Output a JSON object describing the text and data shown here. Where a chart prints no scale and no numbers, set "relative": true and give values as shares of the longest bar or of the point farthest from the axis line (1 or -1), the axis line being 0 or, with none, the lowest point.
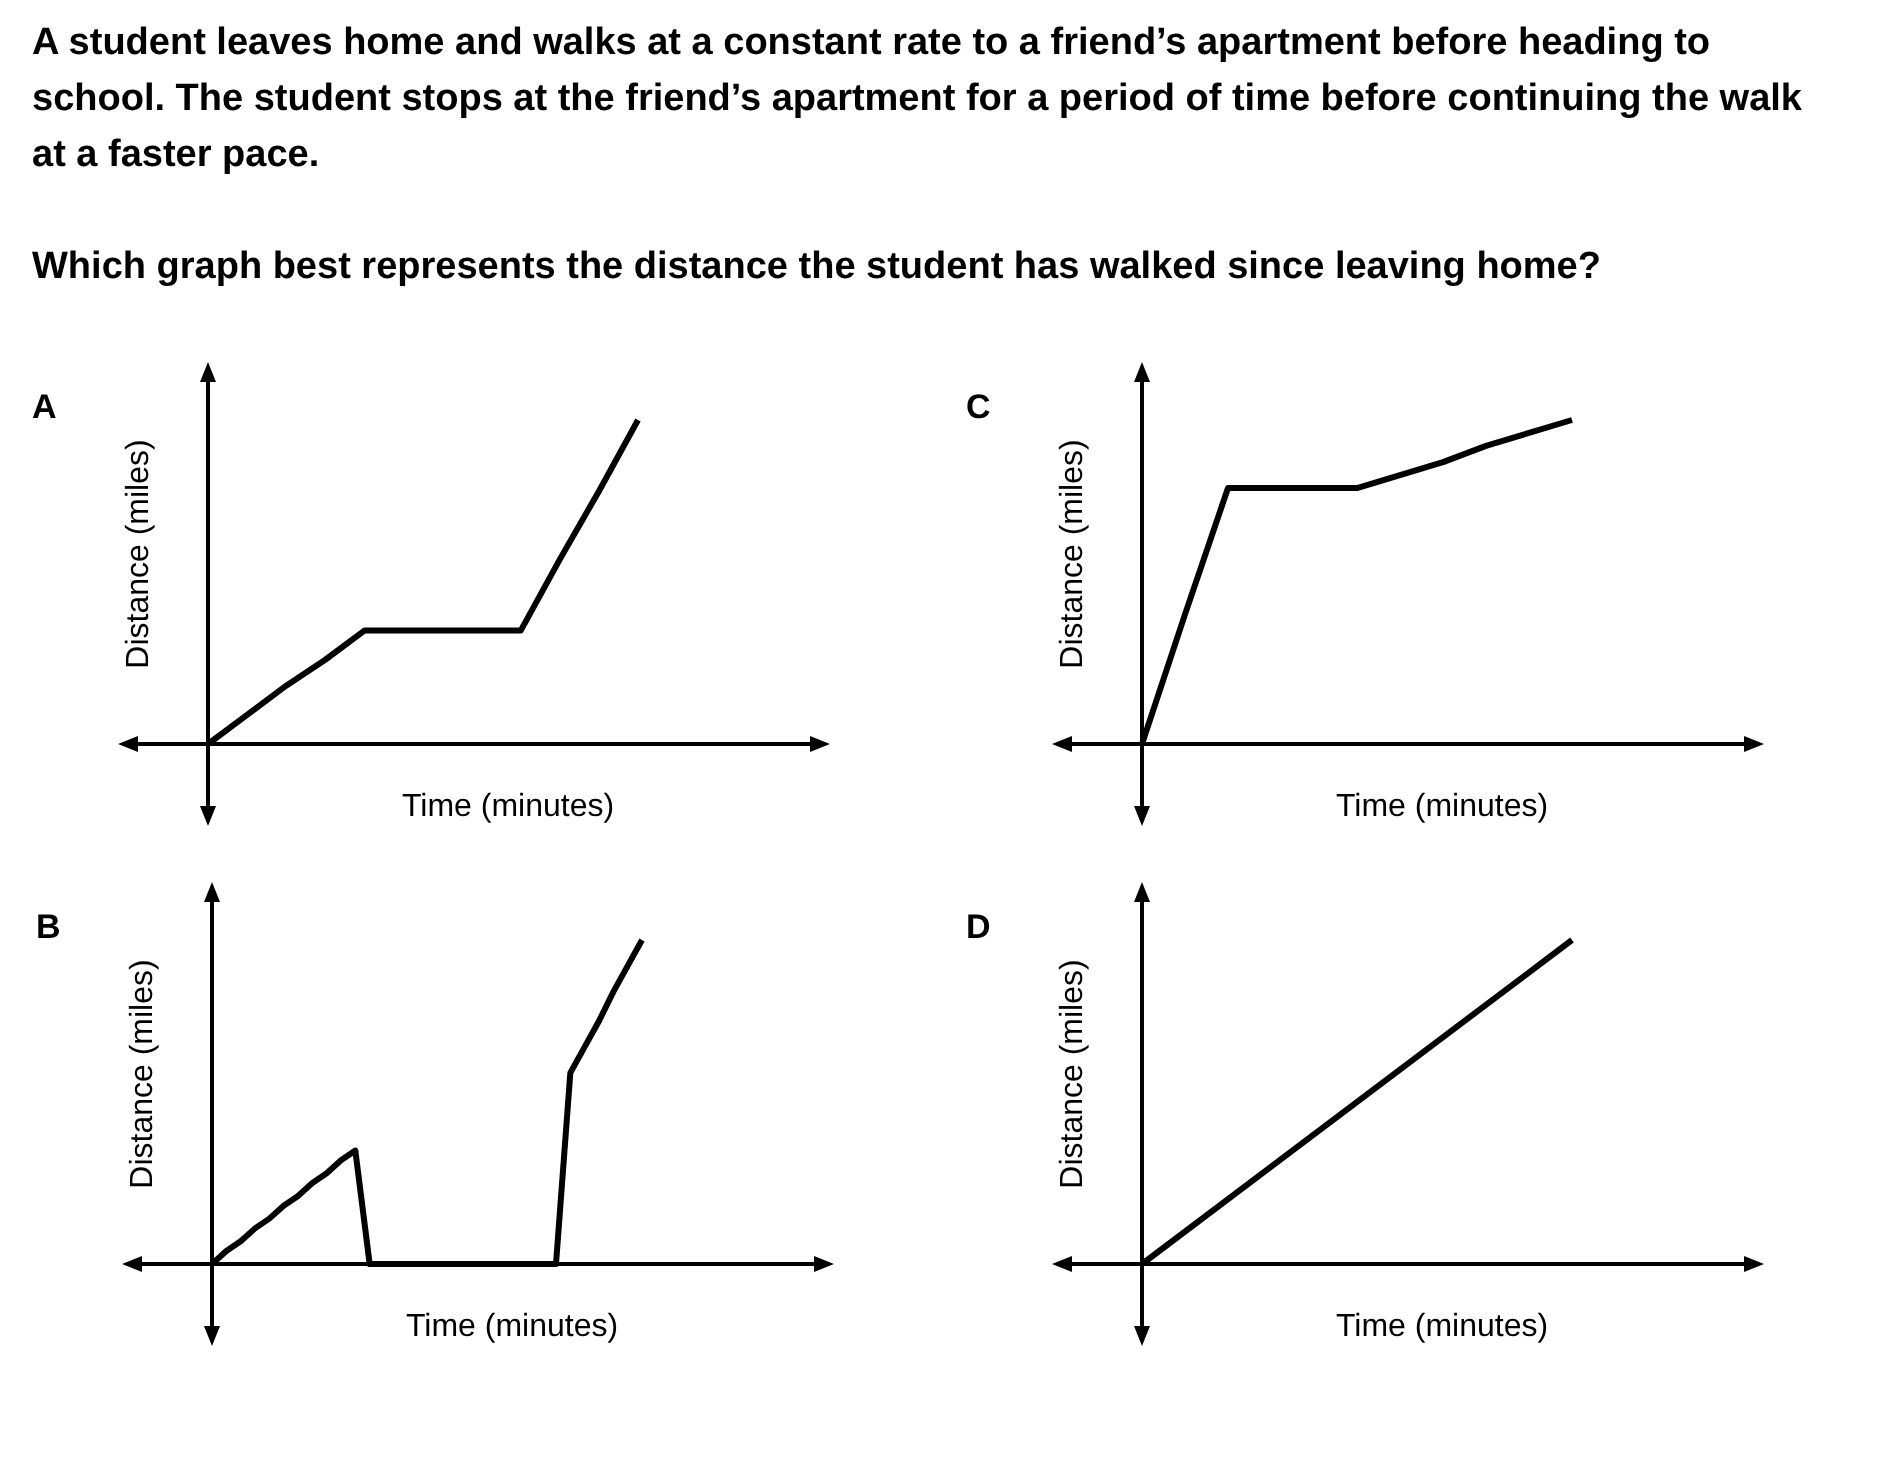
{
  "chart_data": [
    {
      "type": "line",
      "title": "A",
      "xlabel": "Time (minutes)",
      "ylabel": "Distance (miles)",
      "relative": true,
      "annotations": [
        "A student leaves home and walks at a constant rate to a friend’s apartment before heading to school. The student stops at the friend’s apartment for a period of time before continuing the walk at a faster pace.",
        "Which graph best represents the distance the student has walked since leaving home?"
      ],
      "categories": [
        null,
        null,
        null,
        null,
        null,
        null,
        null,
        null,
        null,
        null,
        null,
        null
      ],
      "series": [
        {
          "color": "#000000",
          "values": [
            0,
            0.09,
            0.18,
            0.26,
            0.35,
            0.35,
            0.35,
            0.35,
            0.35,
            0.57,
            0.78,
            1
          ]
        }
      ]
    },
    {
      "type": "line",
      "title": "B",
      "xlabel": "Time (minutes)",
      "ylabel": "Distance (miles)",
      "relative": true,
      "categories": [
        null,
        null,
        null,
        null,
        null,
        null,
        null,
        null,
        null,
        null,
        null,
        null,
        null,
        null,
        null,
        null,
        null,
        null,
        null,
        null,
        null,
        null,
        null,
        null,
        null,
        null,
        null,
        null,
        null,
        null,
        null
      ],
      "series": [
        {
          "color": "#000000",
          "values": [
            0,
            0.04,
            0.07,
            0.11,
            0.14,
            0.18,
            0.21,
            0.25,
            0.28,
            0.32,
            0.35,
            0,
            0,
            0,
            0,
            0,
            0,
            0,
            0,
            0,
            0,
            0,
            0,
            0,
            0,
            0.59,
            0.67,
            0.75,
            0.84,
            0.92,
            1
          ]
        }
      ]
    },
    {
      "type": "line",
      "title": "C",
      "xlabel": "Time (minutes)",
      "ylabel": "Distance (miles)",
      "relative": true,
      "categories": [
        null,
        null,
        null,
        null,
        null,
        null,
        null,
        null,
        null,
        null,
        null
      ],
      "series": [
        {
          "color": "#000000",
          "values": [
            0,
            0.4,
            0.79,
            0.79,
            0.79,
            0.79,
            0.83,
            0.87,
            0.92,
            0.96,
            1
          ]
        }
      ]
    },
    {
      "type": "line",
      "title": "D",
      "xlabel": "Time (minutes)",
      "ylabel": "Distance (miles)",
      "relative": true,
      "categories": [
        null,
        null
      ],
      "series": [
        {
          "color": "#000000",
          "values": [
            0,
            1
          ]
        }
      ]
    }
  ]
}
